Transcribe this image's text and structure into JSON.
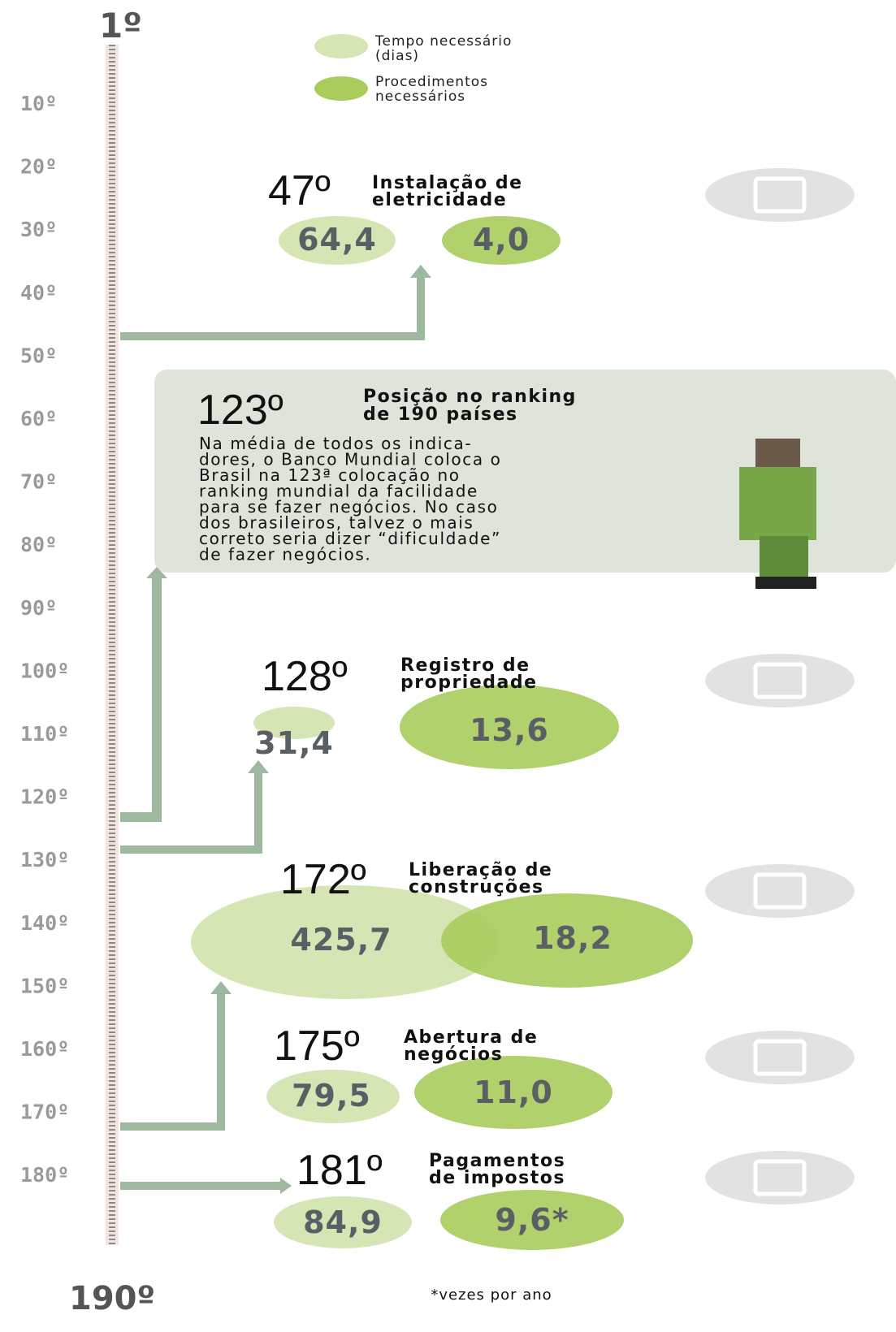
{
  "scale": {
    "top": "1º",
    "bottom": "190º",
    "ticks": [
      "10º",
      "20º",
      "30º",
      "40º",
      "50º",
      "60º",
      "70º",
      "80º",
      "90º",
      "100º",
      "110º",
      "120º",
      "130º",
      "140º",
      "150º",
      "160º",
      "170º",
      "180º"
    ]
  },
  "legend": [
    {
      "label": [
        "Tempo necessário",
        "(dias)"
      ]
    },
    {
      "label": [
        "Procedimentos",
        "necessários"
      ]
    }
  ],
  "summary": {
    "rank": "123º",
    "title": [
      "Posição no ranking",
      "de 190 países"
    ],
    "text": [
      "Na média de todos os indica-",
      "dores, o Banco Mundial coloca o",
      "Brasil na 123ª colocação no",
      "ranking mundial da facilidade",
      "para se fazer negócios. No caso",
      "dos brasileiros, talvez o mais",
      "correto seria dizer “dificuldade”",
      "de fazer negócios."
    ]
  },
  "indicators": [
    {
      "rank": "47º",
      "title": [
        "Instalação de",
        "eletricidade"
      ],
      "days": "64,4",
      "procedures": "4,0"
    },
    {
      "rank": "128º",
      "title": [
        "Registro de",
        "propriedade"
      ],
      "days": "31,4",
      "procedures": "13,6"
    },
    {
      "rank": "172º",
      "title": [
        "Liberação de",
        "construções"
      ],
      "days": "425,7",
      "procedures": "18,2"
    },
    {
      "rank": "175º",
      "title": [
        "Abertura de",
        "negócios"
      ],
      "days": "79,5",
      "procedures": "11,0"
    },
    {
      "rank": "181º",
      "title": [
        "Pagamentos",
        "de impostos"
      ],
      "days": "84,9",
      "procedures": "9,6*"
    }
  ],
  "footnote": "*vezes por ano"
}
